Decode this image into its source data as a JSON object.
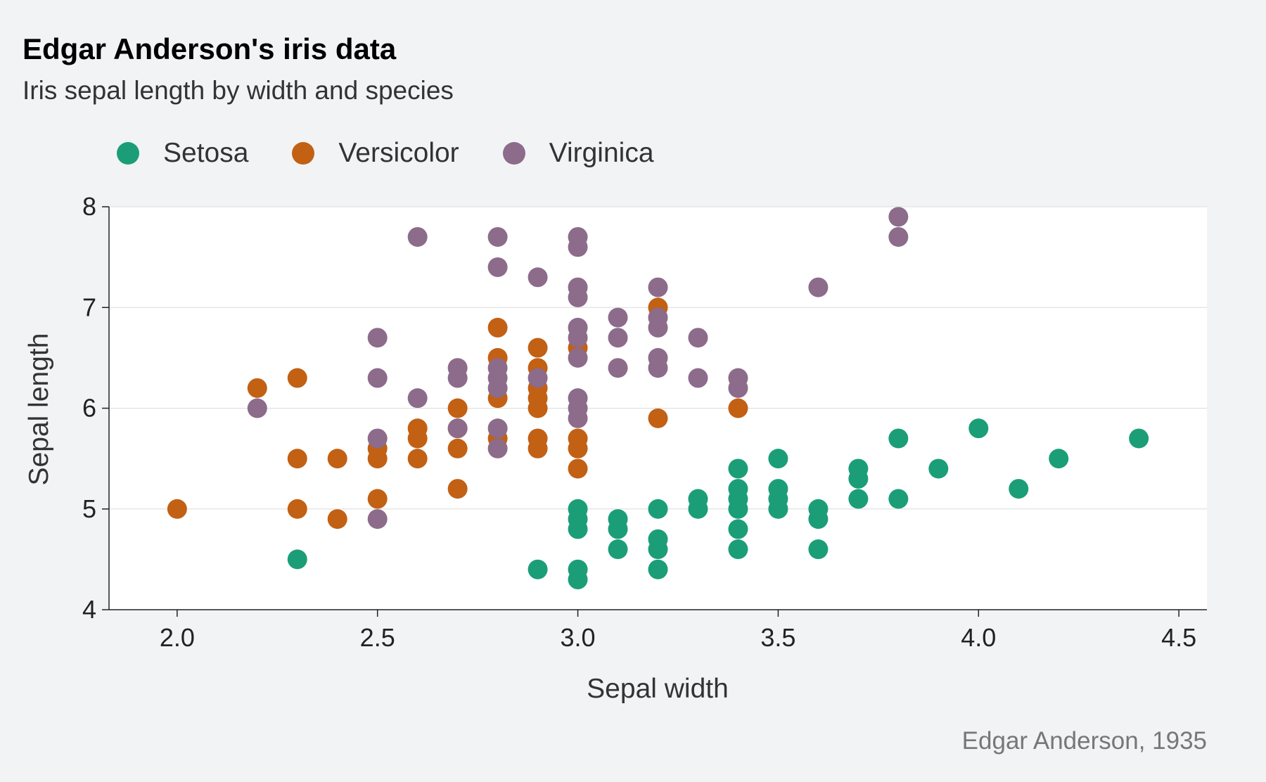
{
  "chart_data": {
    "type": "scatter",
    "title": "Edgar Anderson's iris data",
    "subtitle": "Iris sepal length by width and species",
    "xlabel": "Sepal width",
    "ylabel": "Sepal length",
    "caption": "Edgar Anderson, 1935",
    "xlim": [
      1.83,
      4.57
    ],
    "ylim": [
      4,
      8
    ],
    "x_ticks": [
      "2.0",
      "2.5",
      "3.0",
      "3.5",
      "4.0",
      "4.5"
    ],
    "y_ticks": [
      "4",
      "5",
      "6",
      "7",
      "8"
    ],
    "legend_position": "top-left",
    "grid": "horizontal",
    "series": [
      {
        "name": "Setosa",
        "color": "#1b9e77",
        "points": [
          [
            2.3,
            4.5
          ],
          [
            2.9,
            4.4
          ],
          [
            3.0,
            4.3
          ],
          [
            3.0,
            4.4
          ],
          [
            3.0,
            4.8
          ],
          [
            3.0,
            4.9
          ],
          [
            3.0,
            5.0
          ],
          [
            3.1,
            4.6
          ],
          [
            3.1,
            4.8
          ],
          [
            3.1,
            4.9
          ],
          [
            3.2,
            4.4
          ],
          [
            3.2,
            4.6
          ],
          [
            3.2,
            4.7
          ],
          [
            3.2,
            5.0
          ],
          [
            3.3,
            5.0
          ],
          [
            3.3,
            5.1
          ],
          [
            3.4,
            4.6
          ],
          [
            3.4,
            4.8
          ],
          [
            3.4,
            5.0
          ],
          [
            3.4,
            5.1
          ],
          [
            3.4,
            5.2
          ],
          [
            3.4,
            5.4
          ],
          [
            3.5,
            5.0
          ],
          [
            3.5,
            5.1
          ],
          [
            3.5,
            5.2
          ],
          [
            3.5,
            5.5
          ],
          [
            3.6,
            4.6
          ],
          [
            3.6,
            4.9
          ],
          [
            3.6,
            5.0
          ],
          [
            3.7,
            5.1
          ],
          [
            3.7,
            5.3
          ],
          [
            3.7,
            5.4
          ],
          [
            3.8,
            5.1
          ],
          [
            3.8,
            5.7
          ],
          [
            3.9,
            5.4
          ],
          [
            4.0,
            5.8
          ],
          [
            4.1,
            5.2
          ],
          [
            4.2,
            5.5
          ],
          [
            4.4,
            5.7
          ]
        ]
      },
      {
        "name": "Versicolor",
        "color": "#c26014",
        "points": [
          [
            2.0,
            5.0
          ],
          [
            2.2,
            6.2
          ],
          [
            2.3,
            5.0
          ],
          [
            2.3,
            5.5
          ],
          [
            2.3,
            6.3
          ],
          [
            2.4,
            4.9
          ],
          [
            2.4,
            5.5
          ],
          [
            2.5,
            5.1
          ],
          [
            2.5,
            5.5
          ],
          [
            2.5,
            5.6
          ],
          [
            2.6,
            5.5
          ],
          [
            2.6,
            5.7
          ],
          [
            2.6,
            5.8
          ],
          [
            2.7,
            5.2
          ],
          [
            2.7,
            5.6
          ],
          [
            2.7,
            5.8
          ],
          [
            2.7,
            6.0
          ],
          [
            2.8,
            5.7
          ],
          [
            2.8,
            6.1
          ],
          [
            2.8,
            6.5
          ],
          [
            2.8,
            6.8
          ],
          [
            2.9,
            5.6
          ],
          [
            2.9,
            5.7
          ],
          [
            2.9,
            6.0
          ],
          [
            2.9,
            6.1
          ],
          [
            2.9,
            6.2
          ],
          [
            2.9,
            6.4
          ],
          [
            2.9,
            6.6
          ],
          [
            3.0,
            5.4
          ],
          [
            3.0,
            5.6
          ],
          [
            3.0,
            5.7
          ],
          [
            3.0,
            6.6
          ],
          [
            3.2,
            5.9
          ],
          [
            3.2,
            7.0
          ],
          [
            3.4,
            6.0
          ]
        ]
      },
      {
        "name": "Virginica",
        "color": "#8c6b8b",
        "points": [
          [
            2.2,
            6.0
          ],
          [
            2.5,
            4.9
          ],
          [
            2.5,
            5.7
          ],
          [
            2.5,
            6.3
          ],
          [
            2.5,
            6.7
          ],
          [
            2.6,
            6.1
          ],
          [
            2.6,
            7.7
          ],
          [
            2.7,
            5.8
          ],
          [
            2.7,
            6.3
          ],
          [
            2.7,
            6.4
          ],
          [
            2.8,
            5.6
          ],
          [
            2.8,
            5.8
          ],
          [
            2.8,
            6.2
          ],
          [
            2.8,
            6.3
          ],
          [
            2.8,
            6.4
          ],
          [
            2.8,
            7.4
          ],
          [
            2.8,
            7.7
          ],
          [
            2.9,
            6.3
          ],
          [
            2.9,
            7.3
          ],
          [
            3.0,
            5.9
          ],
          [
            3.0,
            6.0
          ],
          [
            3.0,
            6.1
          ],
          [
            3.0,
            6.5
          ],
          [
            3.0,
            6.7
          ],
          [
            3.0,
            6.8
          ],
          [
            3.0,
            7.1
          ],
          [
            3.0,
            7.2
          ],
          [
            3.0,
            7.6
          ],
          [
            3.0,
            7.7
          ],
          [
            3.1,
            6.4
          ],
          [
            3.1,
            6.7
          ],
          [
            3.1,
            6.9
          ],
          [
            3.2,
            6.4
          ],
          [
            3.2,
            6.5
          ],
          [
            3.2,
            6.8
          ],
          [
            3.2,
            6.9
          ],
          [
            3.2,
            7.2
          ],
          [
            3.3,
            6.3
          ],
          [
            3.3,
            6.7
          ],
          [
            3.4,
            6.2
          ],
          [
            3.4,
            6.3
          ],
          [
            3.6,
            7.2
          ],
          [
            3.8,
            7.7
          ],
          [
            3.8,
            7.9
          ]
        ]
      }
    ]
  }
}
